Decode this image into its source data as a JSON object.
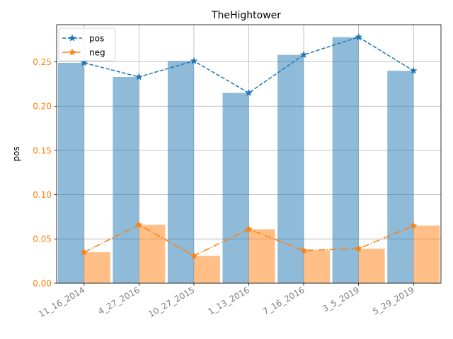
{
  "chart_data": {
    "type": "bar",
    "title": "TheHightower",
    "ylabel": "pos",
    "xlabel": "",
    "categories": [
      "11_16_2014",
      "4_27_2016",
      "10_27_2015",
      "1_13_2016",
      "7_16_2016",
      "3_5_2019",
      "5_29_2019"
    ],
    "series": [
      {
        "name": "pos",
        "values": [
          0.249,
          0.233,
          0.251,
          0.215,
          0.258,
          0.278,
          0.24
        ],
        "color": "#1f77b4",
        "line_style": "dashed",
        "marker": "star"
      },
      {
        "name": "neg",
        "values": [
          0.035,
          0.066,
          0.031,
          0.061,
          0.037,
          0.039,
          0.065
        ],
        "color": "#ff7f0e",
        "line_style": "dash-dot",
        "marker": "star"
      }
    ],
    "ylim": [
      0,
      0.292
    ],
    "yticks": [
      0.0,
      0.05,
      0.1,
      0.15,
      0.2,
      0.25
    ],
    "ytick_labels": [
      "0.00",
      "0.05",
      "0.10",
      "0.15",
      "0.20",
      "0.25"
    ],
    "ytick_color": "#ff7f0e",
    "xtick_color": "#808080",
    "xtick_rotation": 30,
    "grid": true,
    "legend_position": "top-left"
  }
}
